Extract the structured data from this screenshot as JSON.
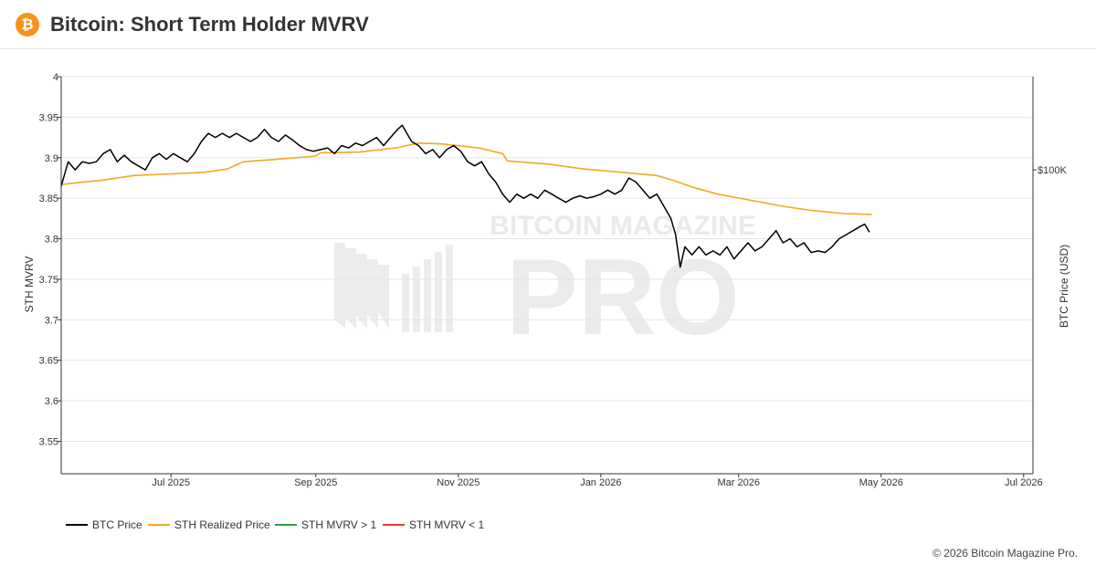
{
  "header": {
    "title": "Bitcoin: Short Term Holder MVRV",
    "logo_glyph": "₿",
    "logo_color": "#f7931a"
  },
  "watermark": {
    "line1": "BITCOIN MAGAZINE",
    "line2": "PRO"
  },
  "copyright": "© 2026 Bitcoin Magazine Pro.",
  "chart_data": {
    "type": "line",
    "title": "Bitcoin: Short Term Holder MVRV",
    "ylabel": "STH MVRV",
    "y2label": "BTC Price (USD)",
    "ylim": [
      3.51,
      4
    ],
    "yticks": [
      3.55,
      3.6,
      3.65,
      3.7,
      3.75,
      3.8,
      3.85,
      3.9,
      3.95,
      4
    ],
    "y2_tick_label": "$100K",
    "y2_tick_value": 3.885,
    "xlim": [
      "2025-05-15",
      "2026-07-05"
    ],
    "xticks": [
      {
        "label": "Jul 2025",
        "date": "2025-07-01"
      },
      {
        "label": "Sep 2025",
        "date": "2025-09-01"
      },
      {
        "label": "Nov 2025",
        "date": "2025-11-01"
      },
      {
        "label": "Jan 2026",
        "date": "2026-01-01"
      },
      {
        "label": "Mar 2026",
        "date": "2026-03-01"
      },
      {
        "label": "May 2026",
        "date": "2026-05-01"
      },
      {
        "label": "Jul 2026",
        "date": "2026-07-01"
      }
    ],
    "grid": true,
    "legend_position": "bottom-left",
    "series": [
      {
        "name": "BTC Price",
        "color": "#000000",
        "points": [
          [
            "2025-05-15",
            3.865
          ],
          [
            "2025-05-18",
            3.895
          ],
          [
            "2025-05-21",
            3.885
          ],
          [
            "2025-05-24",
            3.895
          ],
          [
            "2025-05-27",
            3.893
          ],
          [
            "2025-05-30",
            3.895
          ],
          [
            "2025-06-02",
            3.905
          ],
          [
            "2025-06-05",
            3.91
          ],
          [
            "2025-06-08",
            3.895
          ],
          [
            "2025-06-11",
            3.903
          ],
          [
            "2025-06-14",
            3.895
          ],
          [
            "2025-06-17",
            3.89
          ],
          [
            "2025-06-20",
            3.885
          ],
          [
            "2025-06-23",
            3.9
          ],
          [
            "2025-06-26",
            3.905
          ],
          [
            "2025-06-29",
            3.898
          ],
          [
            "2025-07-02",
            3.905
          ],
          [
            "2025-07-05",
            3.9
          ],
          [
            "2025-07-08",
            3.895
          ],
          [
            "2025-07-11",
            3.905
          ],
          [
            "2025-07-14",
            3.92
          ],
          [
            "2025-07-17",
            3.93
          ],
          [
            "2025-07-20",
            3.925
          ],
          [
            "2025-07-23",
            3.93
          ],
          [
            "2025-07-26",
            3.925
          ],
          [
            "2025-07-29",
            3.93
          ],
          [
            "2025-08-01",
            3.925
          ],
          [
            "2025-08-04",
            3.92
          ],
          [
            "2025-08-07",
            3.925
          ],
          [
            "2025-08-10",
            3.935
          ],
          [
            "2025-08-13",
            3.925
          ],
          [
            "2025-08-16",
            3.92
          ],
          [
            "2025-08-19",
            3.928
          ],
          [
            "2025-08-22",
            3.922
          ],
          [
            "2025-08-25",
            3.915
          ],
          [
            "2025-08-28",
            3.91
          ],
          [
            "2025-08-31",
            3.908
          ],
          [
            "2025-09-03",
            3.91
          ],
          [
            "2025-09-06",
            3.912
          ],
          [
            "2025-09-09",
            3.905
          ],
          [
            "2025-09-12",
            3.915
          ],
          [
            "2025-09-15",
            3.912
          ],
          [
            "2025-09-18",
            3.918
          ],
          [
            "2025-09-21",
            3.915
          ],
          [
            "2025-09-24",
            3.92
          ],
          [
            "2025-09-27",
            3.925
          ],
          [
            "2025-09-30",
            3.915
          ],
          [
            "2025-10-03",
            3.925
          ],
          [
            "2025-10-06",
            3.935
          ],
          [
            "2025-10-08",
            3.94
          ],
          [
            "2025-10-10",
            3.93
          ],
          [
            "2025-10-12",
            3.92
          ],
          [
            "2025-10-15",
            3.915
          ],
          [
            "2025-10-18",
            3.905
          ],
          [
            "2025-10-21",
            3.91
          ],
          [
            "2025-10-24",
            3.9
          ],
          [
            "2025-10-27",
            3.91
          ],
          [
            "2025-10-30",
            3.915
          ],
          [
            "2025-11-02",
            3.908
          ],
          [
            "2025-11-05",
            3.895
          ],
          [
            "2025-11-08",
            3.89
          ],
          [
            "2025-11-11",
            3.895
          ],
          [
            "2025-11-14",
            3.88
          ],
          [
            "2025-11-17",
            3.87
          ],
          [
            "2025-11-20",
            3.855
          ],
          [
            "2025-11-23",
            3.845
          ],
          [
            "2025-11-26",
            3.855
          ],
          [
            "2025-11-29",
            3.85
          ],
          [
            "2025-12-02",
            3.855
          ],
          [
            "2025-12-05",
            3.85
          ],
          [
            "2025-12-08",
            3.86
          ],
          [
            "2025-12-11",
            3.855
          ],
          [
            "2025-12-14",
            3.85
          ],
          [
            "2025-12-17",
            3.845
          ],
          [
            "2025-12-20",
            3.85
          ],
          [
            "2025-12-23",
            3.853
          ],
          [
            "2025-12-26",
            3.85
          ],
          [
            "2025-12-29",
            3.852
          ],
          [
            "2026-01-01",
            3.855
          ],
          [
            "2026-01-04",
            3.86
          ],
          [
            "2026-01-07",
            3.855
          ],
          [
            "2026-01-10",
            3.86
          ],
          [
            "2026-01-13",
            3.875
          ],
          [
            "2026-01-16",
            3.87
          ],
          [
            "2026-01-19",
            3.86
          ],
          [
            "2026-01-22",
            3.85
          ],
          [
            "2026-01-25",
            3.855
          ],
          [
            "2026-01-28",
            3.84
          ],
          [
            "2026-01-31",
            3.825
          ],
          [
            "2026-02-02",
            3.805
          ],
          [
            "2026-02-04",
            3.765
          ],
          [
            "2026-02-06",
            3.79
          ],
          [
            "2026-02-09",
            3.78
          ],
          [
            "2026-02-12",
            3.79
          ],
          [
            "2026-02-15",
            3.78
          ],
          [
            "2026-02-18",
            3.785
          ],
          [
            "2026-02-21",
            3.78
          ],
          [
            "2026-02-24",
            3.79
          ],
          [
            "2026-02-27",
            3.775
          ],
          [
            "2026-03-02",
            3.785
          ],
          [
            "2026-03-05",
            3.795
          ],
          [
            "2026-03-08",
            3.785
          ],
          [
            "2026-03-11",
            3.79
          ],
          [
            "2026-03-14",
            3.8
          ],
          [
            "2026-03-17",
            3.81
          ],
          [
            "2026-03-20",
            3.795
          ],
          [
            "2026-03-23",
            3.8
          ],
          [
            "2026-03-26",
            3.79
          ],
          [
            "2026-03-29",
            3.795
          ],
          [
            "2026-04-01",
            3.783
          ],
          [
            "2026-04-04",
            3.785
          ],
          [
            "2026-04-07",
            3.783
          ],
          [
            "2026-04-10",
            3.79
          ],
          [
            "2026-04-13",
            3.8
          ],
          [
            "2026-04-16",
            3.805
          ],
          [
            "2026-04-19",
            3.81
          ],
          [
            "2026-04-22",
            3.815
          ],
          [
            "2026-04-24",
            3.818
          ],
          [
            "2026-04-26",
            3.808
          ]
        ]
      },
      {
        "name": "STH Realized Price",
        "color": "#f5a623",
        "points": [
          [
            "2025-05-15",
            3.867
          ],
          [
            "2025-06-01",
            3.872
          ],
          [
            "2025-06-15",
            3.878
          ],
          [
            "2025-07-01",
            3.88
          ],
          [
            "2025-07-15",
            3.882
          ],
          [
            "2025-07-25",
            3.886
          ],
          [
            "2025-08-01",
            3.895
          ],
          [
            "2025-08-15",
            3.898
          ],
          [
            "2025-09-01",
            3.902
          ],
          [
            "2025-09-03",
            3.906
          ],
          [
            "2025-09-20",
            3.907
          ],
          [
            "2025-10-05",
            3.912
          ],
          [
            "2025-10-15",
            3.918
          ],
          [
            "2025-10-25",
            3.917
          ],
          [
            "2025-11-10",
            3.912
          ],
          [
            "2025-11-20",
            3.905
          ],
          [
            "2025-11-22",
            3.896
          ],
          [
            "2025-12-10",
            3.892
          ],
          [
            "2025-12-25",
            3.886
          ],
          [
            "2026-01-10",
            3.882
          ],
          [
            "2026-01-25",
            3.878
          ],
          [
            "2026-02-01",
            3.872
          ],
          [
            "2026-02-10",
            3.863
          ],
          [
            "2026-02-20",
            3.855
          ],
          [
            "2026-03-05",
            3.848
          ],
          [
            "2026-03-20",
            3.84
          ],
          [
            "2026-04-01",
            3.835
          ],
          [
            "2026-04-15",
            3.831
          ],
          [
            "2026-04-27",
            3.83
          ]
        ]
      },
      {
        "name": "STH MVRV > 1",
        "color": "#2e9e3e",
        "points": []
      },
      {
        "name": "STH MVRV < 1",
        "color": "#e53935",
        "points": []
      }
    ]
  }
}
